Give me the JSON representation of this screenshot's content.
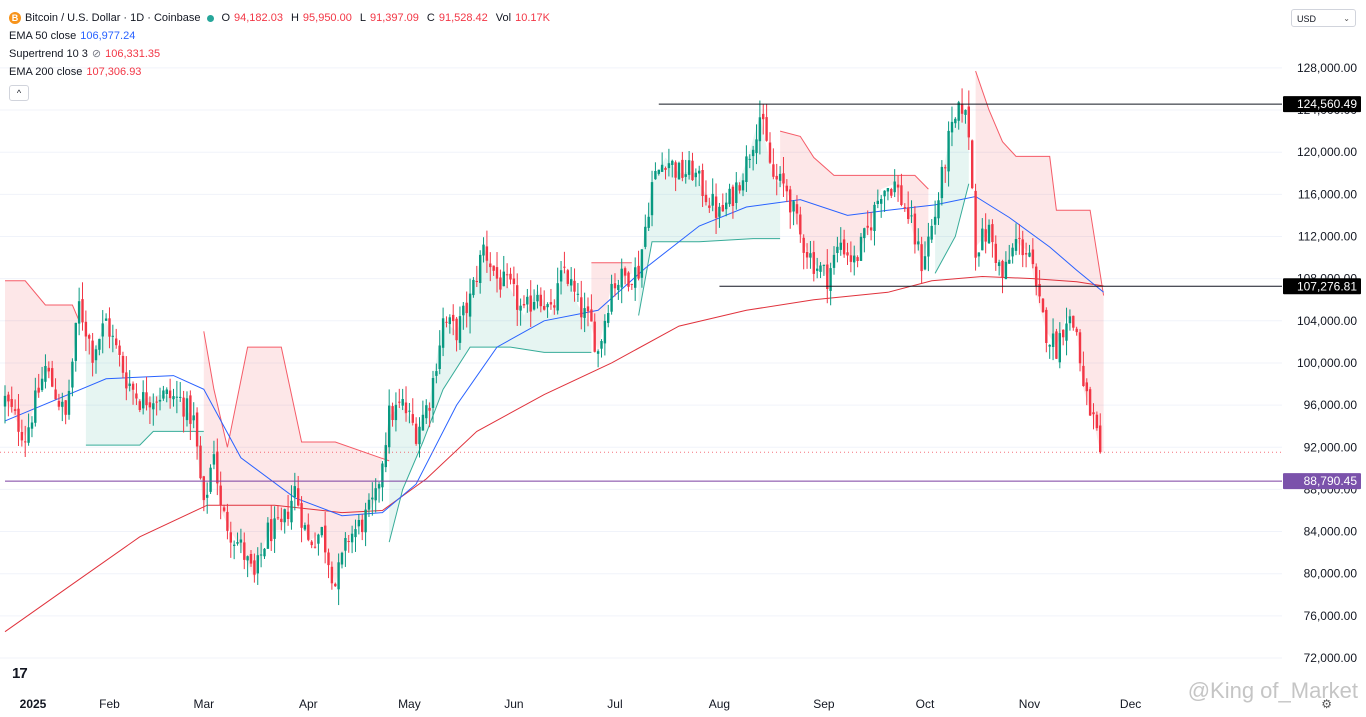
{
  "legend": {
    "symbol": "Bitcoin / U.S. Dollar · 1D · Coinbase",
    "coin_icon": "B",
    "open_label": "O",
    "open": "94,182.03",
    "high_label": "H",
    "high": "95,950.00",
    "low_label": "L",
    "low": "91,397.09",
    "close_label": "C",
    "close": "91,528.42",
    "vol_label": "Vol",
    "vol": "10.17K",
    "ema50_label": "EMA 50 close",
    "ema50_value": "106,977.24",
    "supertrend_label": "Supertrend 10 3",
    "supertrend_value": "106,331.35",
    "ema200_label": "EMA 200 close",
    "ema200_value": "107,306.93",
    "collapse_icon": "^"
  },
  "currency": {
    "label": "USD",
    "chevron": "⌄"
  },
  "branding": {
    "logo": "17",
    "watermark": "@King of_Market"
  },
  "colors": {
    "up": "#089981",
    "down": "#f23645",
    "ema50": "#2962ff",
    "ema200": "#e0323c",
    "st_up_fill": "rgba(8,153,129,0.10)",
    "st_down_fill": "rgba(242,54,69,0.12)",
    "hline": "#131722",
    "support": "#7b3fa1",
    "label_dark": "#000000",
    "label_purple": "#7b52ab"
  },
  "chart_data": {
    "type": "candlestick",
    "title": "Bitcoin / U.S. Dollar · 1D · Coinbase",
    "ylim": [
      70000,
      131000
    ],
    "y_ticks": [
      {
        "value": 72000,
        "label": "72,000.00"
      },
      {
        "value": 76000,
        "label": "76,000.00"
      },
      {
        "value": 80000,
        "label": "80,000.00"
      },
      {
        "value": 84000,
        "label": "84,000.00"
      },
      {
        "value": 88000,
        "label": "88,000.00"
      },
      {
        "value": 92000,
        "label": "92,000.00"
      },
      {
        "value": 96000,
        "label": "96,000.00"
      },
      {
        "value": 100000,
        "label": "100,000.00"
      },
      {
        "value": 104000,
        "label": "104,000.00"
      },
      {
        "value": 108000,
        "label": "108,000.00"
      },
      {
        "value": 112000,
        "label": "112,000.00"
      },
      {
        "value": 116000,
        "label": "116,000.00"
      },
      {
        "value": 120000,
        "label": "120,000.00"
      },
      {
        "value": 124000,
        "label": "124,000.00"
      },
      {
        "value": 128000,
        "label": "128,000.00"
      }
    ],
    "x_range_days": [
      0,
      364
    ],
    "x_ticks": [
      {
        "day": 0,
        "label": "2025",
        "bold": true
      },
      {
        "day": 31,
        "label": "Feb"
      },
      {
        "day": 59,
        "label": "Mar"
      },
      {
        "day": 90,
        "label": "Apr"
      },
      {
        "day": 120,
        "label": "May"
      },
      {
        "day": 151,
        "label": "Jun"
      },
      {
        "day": 181,
        "label": "Jul"
      },
      {
        "day": 212,
        "label": "Aug"
      },
      {
        "day": 243,
        "label": "Sep"
      },
      {
        "day": 273,
        "label": "Oct"
      },
      {
        "day": 304,
        "label": "Nov"
      },
      {
        "day": 334,
        "label": "Dec"
      }
    ],
    "close_path": [
      [
        0,
        96500
      ],
      [
        6,
        93000
      ],
      [
        12,
        99500
      ],
      [
        18,
        94800
      ],
      [
        22,
        105500
      ],
      [
        26,
        101000
      ],
      [
        30,
        104000
      ],
      [
        36,
        98500
      ],
      [
        40,
        96500
      ],
      [
        46,
        97000
      ],
      [
        52,
        96500
      ],
      [
        56,
        94500
      ],
      [
        59,
        86000
      ],
      [
        62,
        92000
      ],
      [
        64,
        86000
      ],
      [
        67,
        84000
      ],
      [
        70,
        82500
      ],
      [
        74,
        79500
      ],
      [
        78,
        84000
      ],
      [
        82,
        84200
      ],
      [
        86,
        88000
      ],
      [
        90,
        83000
      ],
      [
        94,
        84000
      ],
      [
        98,
        79000
      ],
      [
        102,
        83500
      ],
      [
        106,
        84800
      ],
      [
        110,
        87000
      ],
      [
        114,
        95000
      ],
      [
        118,
        96000
      ],
      [
        122,
        93500
      ],
      [
        126,
        96500
      ],
      [
        130,
        104000
      ],
      [
        134,
        103000
      ],
      [
        138,
        106000
      ],
      [
        142,
        111000
      ],
      [
        146,
        108000
      ],
      [
        150,
        107000
      ],
      [
        154,
        104500
      ],
      [
        158,
        107000
      ],
      [
        162,
        104500
      ],
      [
        166,
        109000
      ],
      [
        170,
        105500
      ],
      [
        174,
        103500
      ],
      [
        176,
        101000
      ],
      [
        180,
        107500
      ],
      [
        184,
        108200
      ],
      [
        188,
        108800
      ],
      [
        192,
        117000
      ],
      [
        196,
        119500
      ],
      [
        200,
        118000
      ],
      [
        204,
        118200
      ],
      [
        208,
        116000
      ],
      [
        212,
        114000
      ],
      [
        216,
        116000
      ],
      [
        220,
        119000
      ],
      [
        224,
        123500
      ],
      [
        228,
        117500
      ],
      [
        232,
        116500
      ],
      [
        236,
        112000
      ],
      [
        240,
        109500
      ],
      [
        244,
        108200
      ],
      [
        248,
        111500
      ],
      [
        252,
        109500
      ],
      [
        256,
        112500
      ],
      [
        260,
        116500
      ],
      [
        264,
        117000
      ],
      [
        268,
        114000
      ],
      [
        272,
        109500
      ],
      [
        276,
        114000
      ],
      [
        280,
        121000
      ],
      [
        284,
        124500
      ],
      [
        286,
        122000
      ],
      [
        288,
        111000
      ],
      [
        292,
        112500
      ],
      [
        296,
        108000
      ],
      [
        300,
        111500
      ],
      [
        304,
        110500
      ],
      [
        306,
        106500
      ],
      [
        309,
        103000
      ],
      [
        312,
        101500
      ],
      [
        315,
        104500
      ],
      [
        318,
        103000
      ],
      [
        320,
        97500
      ],
      [
        323,
        94500
      ],
      [
        325,
        91528
      ]
    ],
    "ema50_path": [
      [
        0,
        94500
      ],
      [
        30,
        98500
      ],
      [
        50,
        98800
      ],
      [
        59,
        97500
      ],
      [
        70,
        91000
      ],
      [
        86,
        87200
      ],
      [
        100,
        85500
      ],
      [
        112,
        85800
      ],
      [
        122,
        88500
      ],
      [
        134,
        96000
      ],
      [
        146,
        101500
      ],
      [
        160,
        104000
      ],
      [
        176,
        105000
      ],
      [
        190,
        109000
      ],
      [
        206,
        113000
      ],
      [
        220,
        114800
      ],
      [
        236,
        115500
      ],
      [
        250,
        114000
      ],
      [
        262,
        114500
      ],
      [
        276,
        115000
      ],
      [
        288,
        115800
      ],
      [
        298,
        113800
      ],
      [
        310,
        111000
      ],
      [
        318,
        108800
      ],
      [
        326,
        106700
      ]
    ],
    "ema200_path": [
      [
        0,
        74500
      ],
      [
        20,
        79000
      ],
      [
        40,
        83500
      ],
      [
        60,
        86500
      ],
      [
        80,
        86500
      ],
      [
        100,
        85800
      ],
      [
        112,
        86000
      ],
      [
        125,
        89000
      ],
      [
        140,
        93500
      ],
      [
        160,
        97000
      ],
      [
        180,
        100000
      ],
      [
        200,
        103500
      ],
      [
        220,
        105000
      ],
      [
        240,
        106000
      ],
      [
        262,
        106700
      ],
      [
        275,
        107800
      ],
      [
        290,
        108200
      ],
      [
        305,
        108000
      ],
      [
        318,
        107700
      ],
      [
        326,
        107300
      ]
    ],
    "supertrend": [
      {
        "trend": "down",
        "points": [
          [
            0,
            107800
          ],
          [
            6,
            107800
          ],
          [
            12,
            105500
          ],
          [
            20,
            105500
          ],
          [
            22,
            104000
          ]
        ]
      },
      {
        "trend": "up",
        "points": [
          [
            24,
            92200
          ],
          [
            40,
            92200
          ],
          [
            44,
            93500
          ],
          [
            59,
            93500
          ]
        ]
      },
      {
        "trend": "down",
        "points": [
          [
            59,
            103000
          ],
          [
            62,
            97500
          ],
          [
            66,
            92000
          ],
          [
            72,
            101500
          ],
          [
            82,
            101500
          ],
          [
            88,
            92500
          ],
          [
            98,
            92500
          ],
          [
            114,
            90700
          ]
        ]
      },
      {
        "trend": "up",
        "points": [
          [
            114,
            83000
          ],
          [
            118,
            88000
          ],
          [
            124,
            92500
          ],
          [
            130,
            97500
          ],
          [
            138,
            101500
          ],
          [
            150,
            101500
          ],
          [
            160,
            101000
          ],
          [
            174,
            101000
          ]
        ]
      },
      {
        "trend": "down",
        "points": [
          [
            174,
            109500
          ],
          [
            186,
            109500
          ]
        ]
      },
      {
        "trend": "up",
        "points": [
          [
            188,
            104500
          ],
          [
            192,
            111500
          ],
          [
            206,
            111500
          ],
          [
            222,
            111800
          ],
          [
            230,
            111800
          ]
        ]
      },
      {
        "trend": "down",
        "points": [
          [
            230,
            122000
          ],
          [
            236,
            121500
          ],
          [
            240,
            119500
          ],
          [
            246,
            117800
          ],
          [
            270,
            117800
          ],
          [
            274,
            116500
          ]
        ]
      },
      {
        "trend": "up",
        "points": [
          [
            276,
            108500
          ],
          [
            282,
            112000
          ],
          [
            286,
            117000
          ]
        ]
      },
      {
        "trend": "down",
        "points": [
          [
            288,
            127700
          ],
          [
            292,
            124000
          ],
          [
            296,
            121000
          ],
          [
            300,
            119600
          ],
          [
            310,
            119600
          ],
          [
            312,
            114500
          ],
          [
            322,
            114500
          ],
          [
            326,
            106400
          ]
        ]
      }
    ],
    "horizontal_lines": [
      {
        "value": 124560.49,
        "label": "124,560.49",
        "from_day": 194,
        "style": "dark"
      },
      {
        "value": 107276.81,
        "label": "107,276.81",
        "from_day": 212,
        "style": "dark"
      },
      {
        "value": 88790.45,
        "label": "88,790.45",
        "from_day": 0,
        "style": "purple"
      }
    ],
    "last_price": {
      "value": 91528.42,
      "style": "dotted"
    }
  }
}
